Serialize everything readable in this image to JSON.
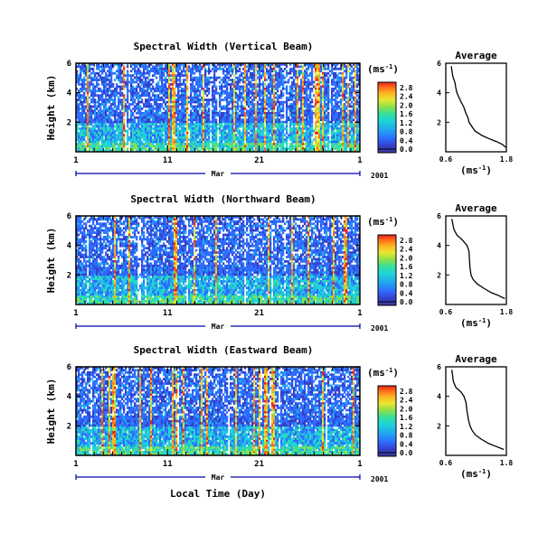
{
  "chart_data": [
    {
      "type": "heatmap",
      "panel": "vertical",
      "title": "Spectral Width (Vertical Beam)",
      "ylabel": "Height (km)",
      "ylim": [
        0,
        6
      ],
      "yticks": [
        "2",
        "4",
        "6"
      ],
      "xticks": [
        "1",
        "11",
        "21",
        "1"
      ],
      "month_label": "Mar",
      "year_label": "2001",
      "colorbar": {
        "unit": "(ms",
        "unit_exp": "-1",
        "unit_close": ")",
        "labels": [
          "2.8",
          "2.4",
          "2.0",
          "1.6",
          "1.2",
          "0.8",
          "0.4",
          "0.0"
        ]
      },
      "average": {
        "title": "Average",
        "xlabel": "(ms",
        "xlabel_exp": "-1",
        "xlabel_close": ")",
        "xticks": [
          "0.6",
          "1.8"
        ],
        "yticks": [
          "2",
          "4",
          "6"
        ],
        "xlim": [
          0.6,
          1.8
        ],
        "ylim": [
          0,
          6
        ],
        "x": [
          0.71,
          0.74,
          0.78,
          0.8,
          0.82,
          0.86,
          0.9,
          0.96,
          1.0,
          1.04,
          1.06,
          1.12,
          1.18,
          1.32,
          1.45,
          1.6,
          1.72,
          1.79
        ],
        "y": [
          5.8,
          5.1,
          4.7,
          4.3,
          4.0,
          3.7,
          3.4,
          3.0,
          2.6,
          2.3,
          2.0,
          1.7,
          1.4,
          1.1,
          0.9,
          0.7,
          0.5,
          0.3
        ]
      }
    },
    {
      "type": "heatmap",
      "panel": "northward",
      "title": "Spectral Width (Northward Beam)",
      "ylabel": "Height (km)",
      "ylim": [
        0,
        6
      ],
      "yticks": [
        "2",
        "4",
        "6"
      ],
      "xticks": [
        "1",
        "11",
        "21",
        "1"
      ],
      "month_label": "Mar",
      "year_label": "2001",
      "colorbar": {
        "unit": "(ms",
        "unit_exp": "-1",
        "unit_close": ")",
        "labels": [
          "2.8",
          "2.4",
          "2.0",
          "1.6",
          "1.2",
          "0.8",
          "0.4",
          "0.0"
        ]
      },
      "average": {
        "title": "Average",
        "xlabel": "(ms",
        "xlabel_exp": "-1",
        "xlabel_close": ")",
        "xticks": [
          "0.6",
          "1.8"
        ],
        "yticks": [
          "2",
          "4",
          "6"
        ],
        "xlim": [
          0.6,
          1.8
        ],
        "ylim": [
          0,
          6
        ],
        "x": [
          0.72,
          0.76,
          0.82,
          0.92,
          1.02,
          1.06,
          1.07,
          1.08,
          1.1,
          1.14,
          1.22,
          1.35,
          1.5,
          1.65,
          1.77
        ],
        "y": [
          5.8,
          5.1,
          4.7,
          4.4,
          4.0,
          3.6,
          3.0,
          2.5,
          2.0,
          1.7,
          1.4,
          1.1,
          0.8,
          0.6,
          0.4
        ]
      }
    },
    {
      "type": "heatmap",
      "panel": "eastward",
      "title": "Spectral Width (Eastward Beam)",
      "ylabel": "Height (km)",
      "xlabel": "Local Time (Day)",
      "ylim": [
        0,
        6
      ],
      "yticks": [
        "2",
        "4",
        "6"
      ],
      "xticks": [
        "1",
        "11",
        "21",
        "1"
      ],
      "month_label": "Mar",
      "year_label": "2001",
      "colorbar": {
        "unit": "(ms",
        "unit_exp": "-1",
        "unit_close": ")",
        "labels": [
          "2.8",
          "2.4",
          "2.0",
          "1.6",
          "1.2",
          "0.8",
          "0.4",
          "0.0"
        ]
      },
      "average": {
        "title": "Average",
        "xlabel": "(ms",
        "xlabel_exp": "-1",
        "xlabel_close": ")",
        "xticks": [
          "0.6",
          "1.8"
        ],
        "yticks": [
          "2",
          "4",
          "6"
        ],
        "xlim": [
          0.6,
          1.8
        ],
        "ylim": [
          0,
          6
        ],
        "x": [
          0.72,
          0.75,
          0.8,
          0.9,
          0.96,
          1.0,
          1.02,
          1.05,
          1.08,
          1.12,
          1.18,
          1.3,
          1.45,
          1.6,
          1.75
        ],
        "y": [
          5.8,
          5.0,
          4.6,
          4.3,
          4.0,
          3.6,
          3.0,
          2.4,
          2.0,
          1.7,
          1.4,
          1.1,
          0.8,
          0.6,
          0.4
        ]
      }
    }
  ],
  "colors": {
    "background": "#ffffff",
    "colormap": [
      "#4a4a4a",
      "#3440c8",
      "#2f6bff",
      "#22a5f0",
      "#1fd3d8",
      "#33e0a0",
      "#8ce04a",
      "#e8e830",
      "#ffb020",
      "#ff6a1a",
      "#e8201a"
    ],
    "axis": "#000000",
    "month_marker": "#0000aa"
  }
}
